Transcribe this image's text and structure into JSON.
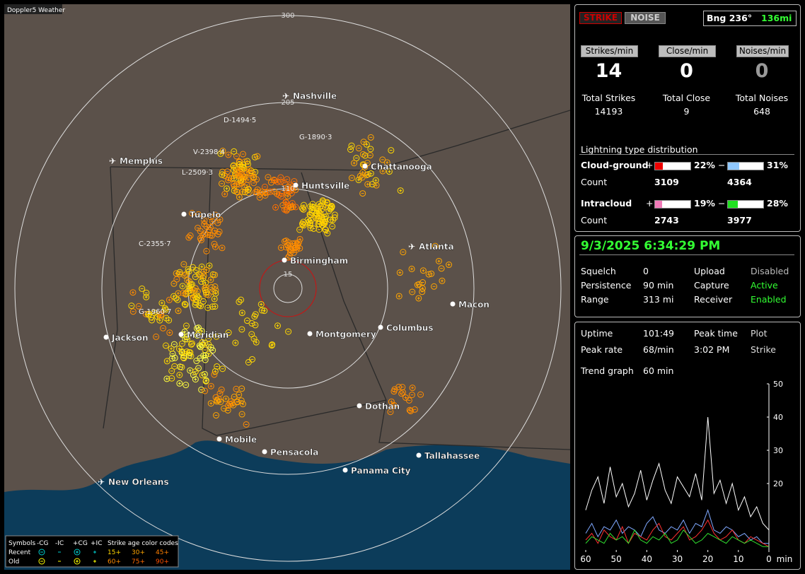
{
  "map": {
    "title": "Doppler5 Weather",
    "ranges": [
      "300",
      "205",
      "110",
      "15"
    ],
    "cities": [
      {
        "name": "Nashville",
        "airport": true
      },
      {
        "name": "Memphis",
        "airport": true
      },
      {
        "name": "Chattanooga",
        "airport": false
      },
      {
        "name": "Huntsville",
        "airport": false
      },
      {
        "name": "Tupelo",
        "airport": false
      },
      {
        "name": "Atlanta",
        "airport": true
      },
      {
        "name": "Birmingham",
        "airport": false
      },
      {
        "name": "Macon",
        "airport": false
      },
      {
        "name": "Jackson",
        "airport": false
      },
      {
        "name": "Meridian",
        "airport": false
      },
      {
        "name": "Montgomery",
        "airport": false
      },
      {
        "name": "Columbus",
        "airport": false
      },
      {
        "name": "Dothan",
        "airport": false
      },
      {
        "name": "Mobile",
        "airport": false
      },
      {
        "name": "Pensacola",
        "airport": false
      },
      {
        "name": "Tallahassee",
        "airport": false
      },
      {
        "name": "Panama City",
        "airport": false
      },
      {
        "name": "New Orleans",
        "airport": true
      }
    ],
    "storms": [
      "D-1494·5",
      "G-1890·3",
      "V-2398·4",
      "L-2509·3",
      "C-2355·7",
      "G-1960·7"
    ],
    "legend": {
      "symbols": "Symbols",
      "types": [
        "-CG",
        "-IC",
        "+CG",
        "+IC"
      ],
      "age_title": "Strike age color codes",
      "recent": "Recent",
      "old": "Old",
      "recent_ages": [
        "15+",
        "30+",
        "45+"
      ],
      "old_ages": [
        "60+",
        "75+",
        "90+"
      ]
    }
  },
  "status": {
    "modes": [
      "STRIKE",
      "NOISE"
    ],
    "bearing": "Bng 236°",
    "distance": "136mi",
    "rates": [
      {
        "label": "Strikes/min",
        "value": 14
      },
      {
        "label": "Close/min",
        "value": 0
      },
      {
        "label": "Noises/min",
        "value": 0
      }
    ],
    "totals": [
      {
        "label": "Total Strikes",
        "value": 14193
      },
      {
        "label": "Total Close",
        "value": 9
      },
      {
        "label": "Total Noises",
        "value": 648
      }
    ],
    "distribution": {
      "title": "Lightning type distribution",
      "rows": [
        {
          "label": "Cloud-ground",
          "pos_sign": "+",
          "pos": {
            "value": 22,
            "label": "22%"
          },
          "neg_sign": "−",
          "neg": {
            "value": 31,
            "label": "31%"
          },
          "count_label": "Count",
          "pos_count": 3109,
          "neg_count": 4364
        },
        {
          "label": "Intracloud",
          "pos_sign": "+",
          "pos": {
            "value": 19,
            "label": "19%"
          },
          "neg_sign": "−",
          "neg": {
            "value": 28,
            "label": "28%"
          },
          "count_label": "Count",
          "pos_count": 2743,
          "neg_count": 3977
        }
      ]
    }
  },
  "settings": {
    "datetime": "9/3/2025 6:34:29 PM",
    "rows": [
      [
        "Squelch",
        0,
        "Upload",
        "Disabled"
      ],
      [
        "Persistence",
        "90 min",
        "Capture",
        "Active"
      ],
      [
        "Range",
        "313 mi",
        "Receiver",
        "Enabled"
      ]
    ]
  },
  "stats": {
    "rows": [
      [
        "Uptime",
        "101:49",
        "Peak time",
        "Plot"
      ],
      [
        "Peak rate",
        "68/min",
        "3:02 PM",
        "Strike"
      ]
    ],
    "trend_label": "Trend graph",
    "trend_window": "60 min",
    "trend": {
      "type": "line",
      "ylim": [
        0,
        50
      ],
      "yticks": [
        20,
        30,
        40,
        50
      ],
      "xlim": [
        60,
        0
      ],
      "xticks": [
        60,
        50,
        40,
        30,
        20,
        10,
        0
      ],
      "x_unit": "min",
      "x": [
        60,
        58,
        56,
        54,
        52,
        50,
        48,
        46,
        44,
        42,
        40,
        38,
        36,
        34,
        32,
        30,
        28,
        26,
        24,
        22,
        20,
        18,
        16,
        14,
        12,
        10,
        8,
        6,
        4,
        2,
        0
      ],
      "series": [
        {
          "color": "#ffffff",
          "values": [
            12,
            18,
            22,
            14,
            25,
            16,
            20,
            13,
            17,
            24,
            15,
            21,
            26,
            18,
            14,
            22,
            19,
            16,
            23,
            15,
            40,
            17,
            21,
            14,
            20,
            12,
            16,
            10,
            13,
            8,
            6
          ]
        },
        {
          "color": "#7fa8ff",
          "values": [
            5,
            8,
            4,
            7,
            6,
            9,
            5,
            7,
            6,
            4,
            8,
            10,
            6,
            5,
            7,
            6,
            9,
            5,
            8,
            7,
            12,
            6,
            5,
            7,
            6,
            4,
            5,
            3,
            4,
            2,
            2
          ]
        },
        {
          "color": "#ff3030",
          "values": [
            3,
            5,
            2,
            6,
            4,
            3,
            7,
            2,
            5,
            4,
            3,
            6,
            8,
            4,
            3,
            5,
            7,
            3,
            4,
            6,
            9,
            5,
            3,
            4,
            6,
            3,
            2,
            4,
            3,
            2,
            1
          ]
        },
        {
          "color": "#30e030",
          "values": [
            2,
            4,
            3,
            2,
            5,
            3,
            4,
            2,
            6,
            3,
            2,
            4,
            3,
            5,
            2,
            3,
            6,
            4,
            2,
            3,
            5,
            4,
            3,
            2,
            4,
            3,
            2,
            3,
            2,
            1,
            1
          ]
        }
      ]
    }
  }
}
